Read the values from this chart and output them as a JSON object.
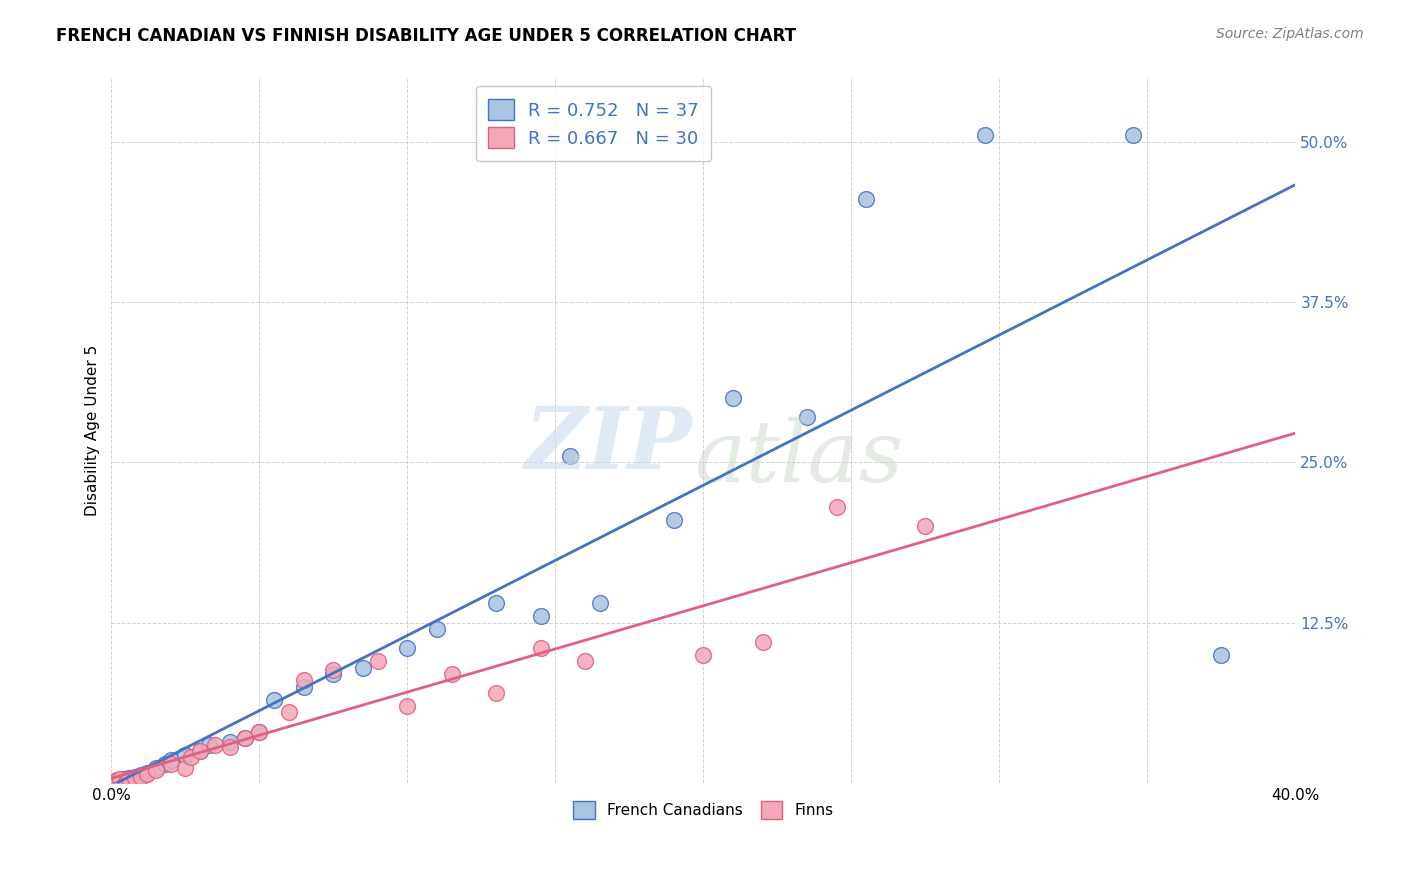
{
  "title": "FRENCH CANADIAN VS FINNISH DISABILITY AGE UNDER 5 CORRELATION CHART",
  "source": "Source: ZipAtlas.com",
  "ylabel": "Disability Age Under 5",
  "xlim": [
    0.0,
    0.4
  ],
  "ylim": [
    0.0,
    0.55
  ],
  "ytick_values": [
    0.0,
    0.125,
    0.25,
    0.375,
    0.5
  ],
  "blue_R": 0.752,
  "blue_N": 37,
  "pink_R": 0.667,
  "pink_N": 30,
  "blue_color": "#a8c4e0",
  "blue_line_color": "#4472c4",
  "pink_color": "#f4a7b9",
  "pink_line_color": "#e06080",
  "legend_blue_label": "R = 0.752   N = 37",
  "legend_pink_label": "R = 0.667   N = 30",
  "background_color": "#ffffff",
  "grid_color": "#cccccc",
  "blue_x": [
    0.001,
    0.002,
    0.003,
    0.004,
    0.005,
    0.006,
    0.007,
    0.008,
    0.009,
    0.01,
    0.012,
    0.015,
    0.018,
    0.02,
    0.025,
    0.03,
    0.033,
    0.04,
    0.045,
    0.05,
    0.055,
    0.065,
    0.075,
    0.085,
    0.1,
    0.11,
    0.13,
    0.145,
    0.155,
    0.165,
    0.19,
    0.21,
    0.235,
    0.255,
    0.295,
    0.345,
    0.375
  ],
  "blue_y": [
    0.001,
    0.002,
    0.001,
    0.003,
    0.003,
    0.004,
    0.002,
    0.005,
    0.003,
    0.006,
    0.008,
    0.012,
    0.015,
    0.018,
    0.022,
    0.025,
    0.03,
    0.032,
    0.035,
    0.04,
    0.065,
    0.075,
    0.085,
    0.09,
    0.105,
    0.12,
    0.14,
    0.13,
    0.255,
    0.14,
    0.205,
    0.3,
    0.285,
    0.455,
    0.505,
    0.505,
    0.1
  ],
  "pink_x": [
    0.001,
    0.002,
    0.003,
    0.005,
    0.006,
    0.008,
    0.01,
    0.012,
    0.015,
    0.02,
    0.025,
    0.027,
    0.03,
    0.035,
    0.04,
    0.045,
    0.05,
    0.06,
    0.065,
    0.075,
    0.09,
    0.1,
    0.115,
    0.13,
    0.145,
    0.16,
    0.2,
    0.22,
    0.245,
    0.275
  ],
  "pink_y": [
    0.001,
    0.002,
    0.003,
    0.001,
    0.003,
    0.004,
    0.005,
    0.007,
    0.01,
    0.015,
    0.012,
    0.02,
    0.025,
    0.03,
    0.028,
    0.035,
    0.04,
    0.055,
    0.08,
    0.088,
    0.095,
    0.06,
    0.085,
    0.07,
    0.105,
    0.095,
    0.1,
    0.11,
    0.215,
    0.2
  ]
}
